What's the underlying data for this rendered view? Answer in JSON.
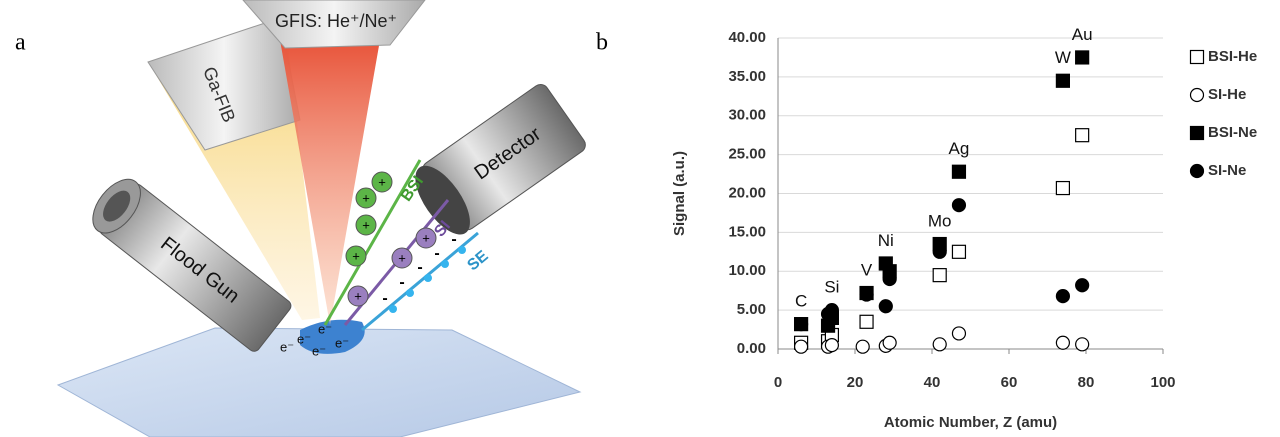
{
  "panel_labels": [
    "a",
    "b"
  ],
  "diagram": {
    "beam_labels": [
      "GFIS: He⁺/Ne⁺",
      "Ga-FIB"
    ],
    "detector": "Detector",
    "flood_gun": "Flood Gun",
    "streams": [
      "BSI",
      "SI",
      "SE"
    ],
    "electron": "e⁻",
    "ion_sign": "+",
    "electron_sign": "-"
  },
  "chart_data": {
    "type": "scatter",
    "xlabel": "Atomic Number, Z (amu)",
    "ylabel": "Signal (a.u.)",
    "xlim": [
      0,
      100
    ],
    "xticks": [
      0,
      20,
      40,
      60,
      80,
      100
    ],
    "ylim": [
      0,
      40
    ],
    "yticks": [
      {
        "value": 0,
        "label": "0.00"
      },
      {
        "value": 5,
        "label": "5.00"
      },
      {
        "value": 10,
        "label": "10.00"
      },
      {
        "value": 15,
        "label": "15.00"
      },
      {
        "value": 20,
        "label": "20.00"
      },
      {
        "value": 25,
        "label": "25.00"
      },
      {
        "value": 30,
        "label": "30.00"
      },
      {
        "value": 35,
        "label": "35.00"
      },
      {
        "value": 40,
        "label": "40.00"
      }
    ],
    "grid": true,
    "series": [
      {
        "name": "BSI-He",
        "marker": "square-open",
        "color": "#000000",
        "x": [
          6,
          13,
          14,
          23,
          42,
          47,
          74,
          79
        ],
        "values": [
          0.8,
          1.0,
          1.8,
          3.5,
          9.5,
          12.5,
          20.7,
          27.5
        ]
      },
      {
        "name": "SI-He",
        "marker": "circle-open",
        "color": "#000000",
        "x": [
          6,
          13,
          14,
          22,
          28,
          29,
          42,
          47,
          74,
          79
        ],
        "values": [
          0.3,
          0.3,
          0.5,
          0.3,
          0.4,
          0.8,
          0.6,
          2.0,
          0.8,
          0.6
        ]
      },
      {
        "name": "BSI-Ne",
        "marker": "square",
        "color": "#000000",
        "x": [
          6,
          13,
          14,
          23,
          28,
          29,
          42,
          47,
          74,
          79
        ],
        "values": [
          3.2,
          3.0,
          4.0,
          7.2,
          11.0,
          10.0,
          13.5,
          22.8,
          34.5,
          37.5
        ]
      },
      {
        "name": "SI-Ne",
        "marker": "circle",
        "color": "#000000",
        "x": [
          6,
          13,
          14,
          23,
          28,
          29,
          42,
          47,
          74,
          79
        ],
        "values": [
          3.2,
          4.5,
          5.0,
          7.0,
          5.5,
          9.0,
          12.5,
          18.5,
          6.8,
          8.2
        ]
      }
    ],
    "annotations": [
      {
        "text": "C",
        "x": 6
      },
      {
        "text": "Si",
        "x": 14
      },
      {
        "text": "V",
        "x": 23
      },
      {
        "text": "Ni",
        "x": 28
      },
      {
        "text": "Mo",
        "x": 42
      },
      {
        "text": "Ag",
        "x": 47
      },
      {
        "text": "W",
        "x": 74
      },
      {
        "text": "Au",
        "x": 79
      }
    ]
  }
}
